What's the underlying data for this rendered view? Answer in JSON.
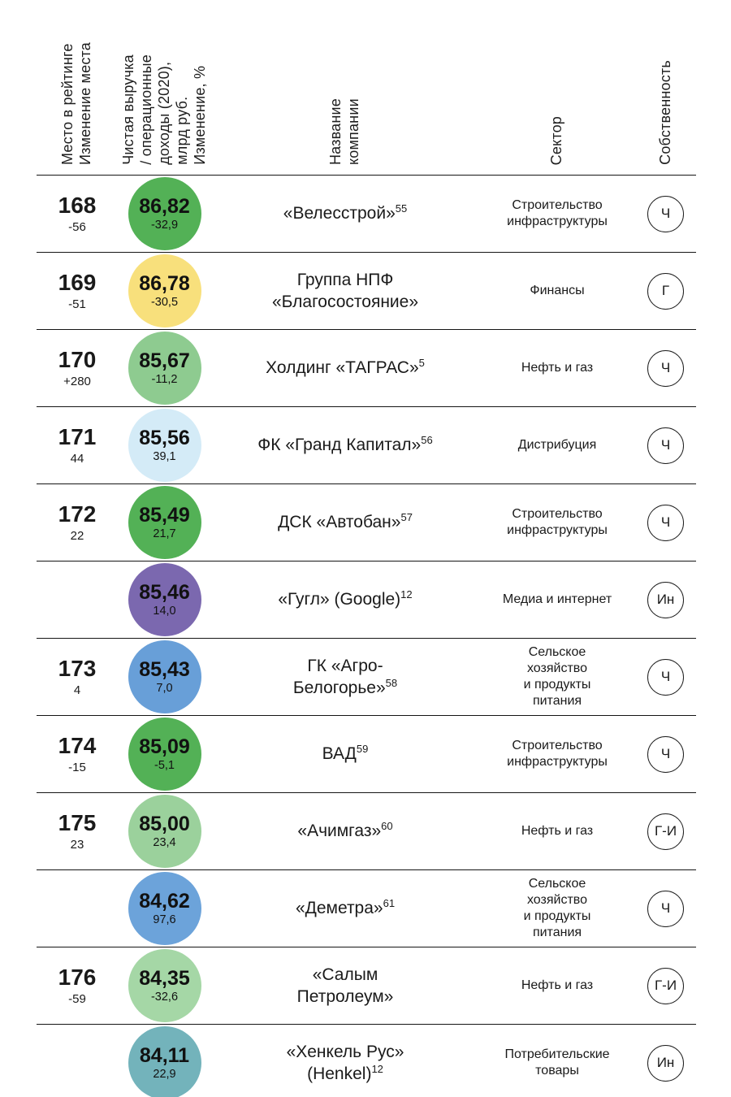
{
  "headers": {
    "rank": "Место в рейтинге\nИзменение места",
    "value": "Чистая выручка\n/ операционные\nдоходы (2020),\nмлрд руб.\nИзменение, %",
    "name": "Название\nкомпании",
    "sector": "Сектор",
    "ownership": "Собственность"
  },
  "ownership_codes": {
    "private": "Ч",
    "state": "Г",
    "foreign": "Ин",
    "state_foreign": "Г-И"
  },
  "rows": [
    {
      "rank": "168",
      "rank_change": "-56",
      "value": "86,82",
      "value_change": "-32,9",
      "circle_color": "#53b156",
      "name": "«Велесстрой»",
      "sup": "55",
      "sector": "Строительство\nинфраструктуры",
      "ownership": "Ч"
    },
    {
      "rank": "169",
      "rank_change": "-51",
      "value": "86,78",
      "value_change": "-30,5",
      "circle_color": "#f8e07c",
      "name": "Группа НПФ\n«Благосостояние»",
      "sup": "",
      "sector": "Финансы",
      "ownership": "Г"
    },
    {
      "rank": "170",
      "rank_change": "+280",
      "value": "85,67",
      "value_change": "-11,2",
      "circle_color": "#8ecb90",
      "name": "Холдинг «ТАГРАС»",
      "sup": "5",
      "sector": "Нефть и газ",
      "ownership": "Ч"
    },
    {
      "rank": "171",
      "rank_change": "44",
      "value": "85,56",
      "value_change": "39,1",
      "circle_color": "#d4ebf7",
      "name": "ФК «Гранд Капитал»",
      "sup": "56",
      "sector": "Дистрибуция",
      "ownership": "Ч"
    },
    {
      "rank": "172",
      "rank_change": "22",
      "value": "85,49",
      "value_change": "21,7",
      "circle_color": "#53b156",
      "name": "ДСК «Автобан»",
      "sup": "57",
      "sector": "Строительство\nинфраструктуры",
      "ownership": "Ч"
    },
    {
      "rank": "",
      "rank_change": "",
      "value": "85,46",
      "value_change": "14,0",
      "circle_color": "#7b68af",
      "name": "«Гугл» (Google)",
      "sup": "12",
      "sector": "Медиа и интернет",
      "ownership": "Ин"
    },
    {
      "rank": "173",
      "rank_change": "4",
      "value": "85,43",
      "value_change": "7,0",
      "circle_color": "#689fd8",
      "name": "ГК «Агро-\nБелогорье»",
      "sup": "58",
      "sector": "Сельское\nхозяйство\nи продукты\nпитания",
      "ownership": "Ч"
    },
    {
      "rank": "174",
      "rank_change": "-15",
      "value": "85,09",
      "value_change": "-5,1",
      "circle_color": "#53b156",
      "name": "ВАД",
      "sup": "59",
      "sector": "Строительство\nинфраструктуры",
      "ownership": "Ч"
    },
    {
      "rank": "175",
      "rank_change": "23",
      "value": "85,00",
      "value_change": "23,4",
      "circle_color": "#9bd19c",
      "name": "«Ачимгаз»",
      "sup": "60",
      "sector": "Нефть и газ",
      "ownership": "Г-И"
    },
    {
      "rank": "",
      "rank_change": "",
      "value": "84,62",
      "value_change": "97,6",
      "circle_color": "#6ca3da",
      "name": "«Деметра»",
      "sup": "61",
      "sector": "Сельское\nхозяйство\nи продукты\nпитания",
      "ownership": "Ч"
    },
    {
      "rank": "176",
      "rank_change": "-59",
      "value": "84,35",
      "value_change": "-32,6",
      "circle_color": "#a5d7a6",
      "name": "«Салым\nПетролеум»",
      "sup": "",
      "sector": "Нефть и газ",
      "ownership": "Г-И"
    },
    {
      "rank": "",
      "rank_change": "",
      "value": "84,11",
      "value_change": "22,9",
      "circle_color": "#73b3bb",
      "name": "«Хенкель Рус»\n(Henkel)",
      "sup": "12",
      "sector": "Потребительские\nтовары",
      "ownership": "Ин"
    }
  ]
}
